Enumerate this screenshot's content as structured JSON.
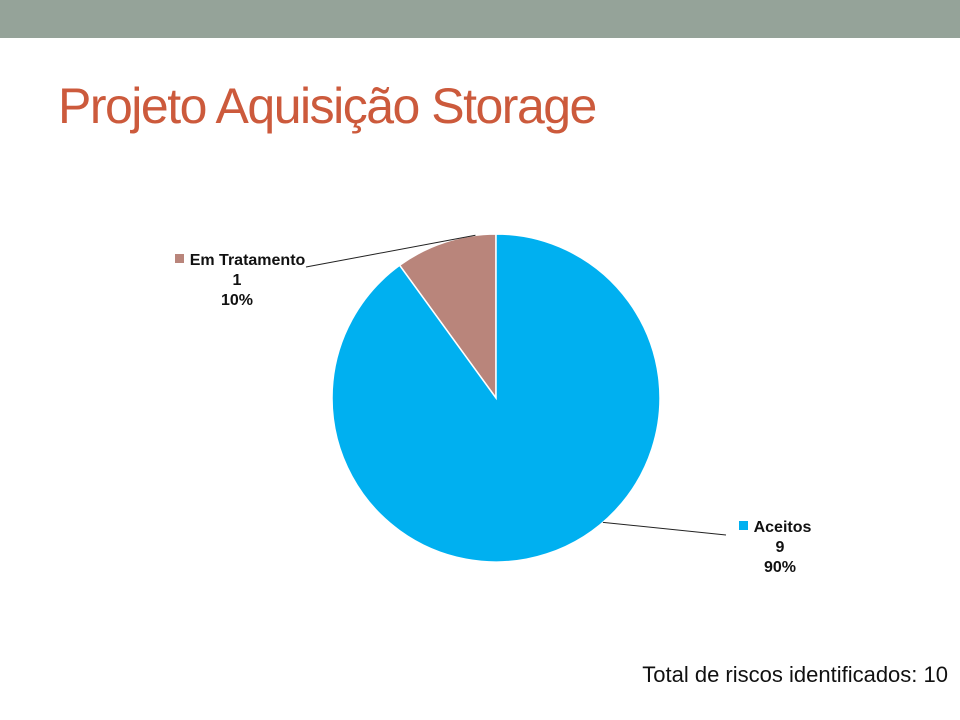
{
  "slide": {
    "title": "Projeto Aquisição Storage",
    "footnote": "Total de riscos identificados: 10",
    "colors": {
      "top_bar": "#95a399",
      "title": "#cc5a3c"
    }
  },
  "chart_data": {
    "type": "pie",
    "title": "",
    "slices": [
      {
        "label": "Em Tratamento",
        "value": 1,
        "percent": "10%",
        "color": "#b9857b"
      },
      {
        "label": "Aceitos",
        "value": 9,
        "percent": "90%",
        "color": "#00b0f0"
      }
    ],
    "start_angle": "12 o'clock",
    "direction": "counter-clockwise",
    "data_labels": "outside with leader lines",
    "legend": "none"
  }
}
